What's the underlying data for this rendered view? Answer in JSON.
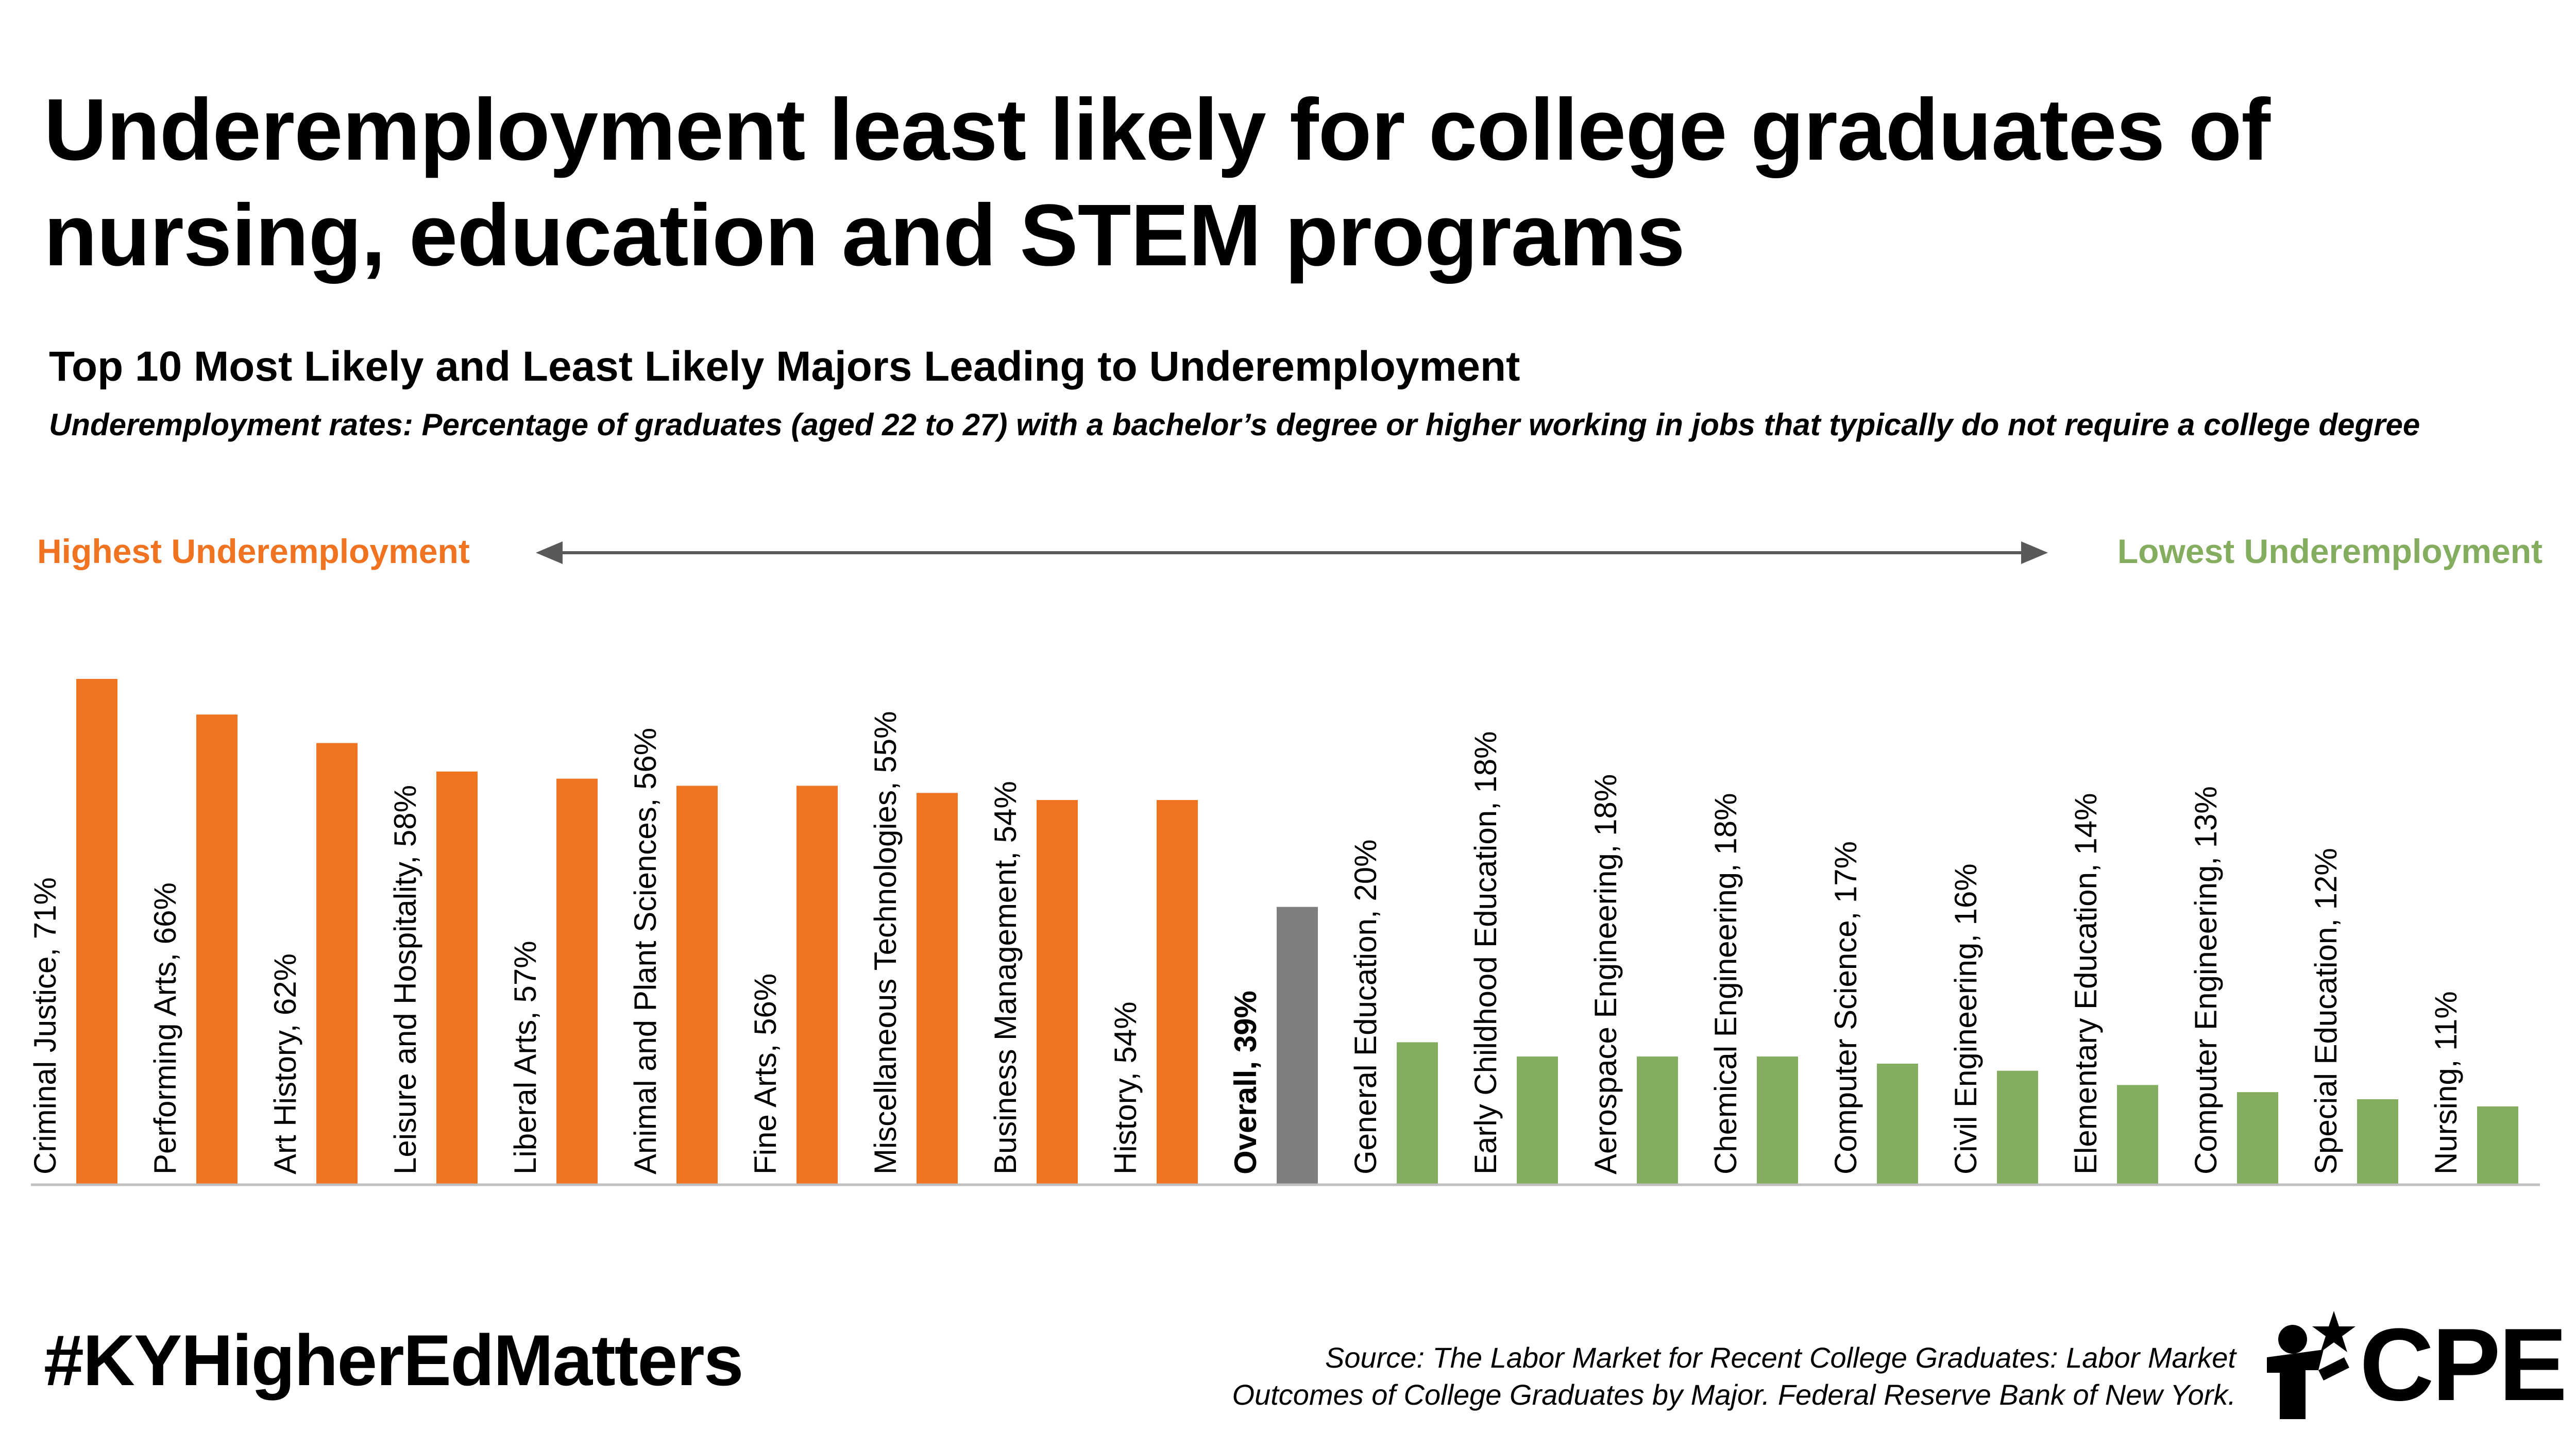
{
  "headline": "Underemployment least likely for college graduates of nursing, education and STEM programs",
  "subtitle": "Top 10 Most Likely and Least Likely Majors Leading to Underemployment",
  "description": "Underemployment rates: Percentage of graduates (aged 22 to 27) with a bachelor’s degree or higher working in jobs that typically do not require a college degree",
  "range_left": "Highest Underemployment",
  "range_right": "Lowest Underemployment",
  "hashtag": "#KYHigherEdMatters",
  "source_line1": "Source: The Labor Market for Recent College Graduates: Labor Market",
  "source_line2": "Outcomes of College Graduates by Major. Federal Reserve Bank of New York.",
  "logo_text": "CPE",
  "colors": {
    "highest": "#f07322",
    "overall": "#7f7f7f",
    "lowest": "#84ad5f",
    "axis": "#bfbfbf",
    "arrow": "#595959"
  },
  "chart_data": {
    "type": "bar",
    "title": "Top 10 Most Likely and Least Likely Majors Leading to Underemployment",
    "ylim": [
      0,
      71
    ],
    "grid": false,
    "categories": [
      "Criminal Justice",
      "Performing Arts",
      "Art History",
      "Leisure and Hospitality",
      "Liberal Arts",
      "Animal and Plant Sciences",
      "Fine Arts",
      "Miscellaneous Technologies",
      "Business Management",
      "History",
      "Overall",
      "General Education",
      "Early Childhood Education",
      "Aerospace Engineering",
      "Chemical Engineering",
      "Computer Science",
      "Civil Engineering",
      "Elementary Education",
      "Computer Engineering",
      "Special Education",
      "Nursing"
    ],
    "values": [
      71,
      66,
      62,
      58,
      57,
      56,
      56,
      55,
      54,
      54,
      39,
      20,
      18,
      18,
      18,
      17,
      16,
      14,
      13,
      12,
      11
    ],
    "labels": [
      "Criminal Justice, 71%",
      "Performing Arts, 66%",
      "Art History, 62%",
      "Leisure and Hospitality, 58%",
      "Liberal Arts, 57%",
      "Animal and Plant Sciences, 56%",
      "Fine Arts, 56%",
      "Miscellaneous Technologies, 55%",
      "Business Management, 54%",
      "History, 54%",
      "Overall, 39%",
      "General Education, 20%",
      "Early Childhood Education, 18%",
      "Aerospace Engineering, 18%",
      "Chemical Engineering, 18%",
      "Computer Science, 17%",
      "Civil Engineering, 16%",
      "Elementary Education, 14%",
      "Computer Engineering, 13%",
      "Special Education, 12%",
      "Nursing, 11%"
    ],
    "groups": [
      "highest",
      "highest",
      "highest",
      "highest",
      "highest",
      "highest",
      "highest",
      "highest",
      "highest",
      "highest",
      "overall",
      "lowest",
      "lowest",
      "lowest",
      "lowest",
      "lowest",
      "lowest",
      "lowest",
      "lowest",
      "lowest",
      "lowest"
    ]
  }
}
